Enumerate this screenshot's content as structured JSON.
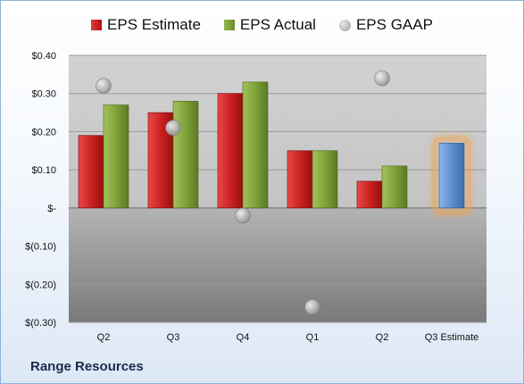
{
  "company": "Range Resources",
  "legend": {
    "estimate": "EPS Estimate",
    "actual": "EPS Actual",
    "gaap": "EPS GAAP"
  },
  "colors": {
    "estimate": "#cc2222",
    "actual": "#7fa23a",
    "gaap": "#a0a0a0",
    "projection": "#5d8fd0",
    "projection_glow": "#f2a24a"
  },
  "chart_data": {
    "type": "bar",
    "categories": [
      "Q2",
      "Q3",
      "Q4",
      "Q1",
      "Q2",
      "Q3 Estimate"
    ],
    "series": [
      {
        "name": "EPS Estimate",
        "values": [
          0.19,
          0.25,
          0.3,
          0.15,
          0.07,
          null
        ]
      },
      {
        "name": "EPS Actual",
        "values": [
          0.27,
          0.28,
          0.33,
          0.15,
          0.11,
          null
        ]
      },
      {
        "name": "EPS GAAP",
        "values": [
          0.32,
          0.21,
          -0.02,
          -0.26,
          0.34,
          null
        ]
      }
    ],
    "projection": {
      "category": "Q3 Estimate",
      "value": 0.17
    },
    "ylim": [
      -0.3,
      0.4
    ],
    "yticks": [
      0.4,
      0.3,
      0.2,
      0.1,
      0.0,
      -0.1,
      -0.2,
      -0.3
    ],
    "ytick_labels": [
      "$0.40",
      "$0.30",
      "$0.20",
      "$0.10",
      "$-",
      "$(0.10)",
      "$(0.20)",
      "$(0.30)"
    ],
    "grid": true,
    "legend_position": "top"
  }
}
